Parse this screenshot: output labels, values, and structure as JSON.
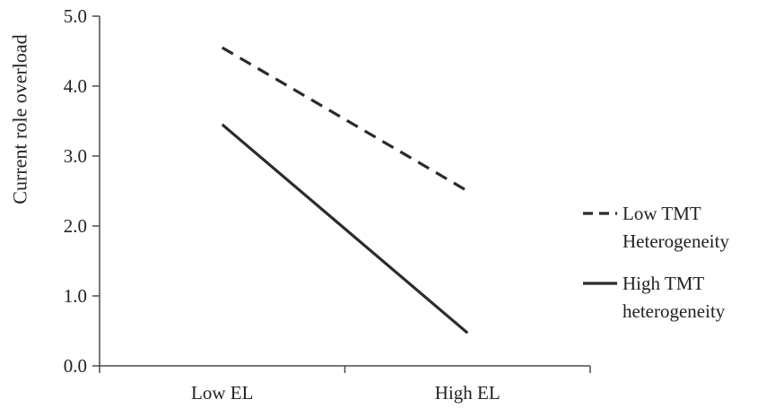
{
  "chart_data": {
    "type": "line",
    "title": "",
    "xlabel": "",
    "ylabel": "Current role overload",
    "categories": [
      "Low EL",
      "High EL"
    ],
    "y_ticks": [
      "0.0",
      "1.0",
      "2.0",
      "3.0",
      "4.0",
      "5.0"
    ],
    "ylim": [
      0,
      5
    ],
    "grid": false,
    "legend_position": "right",
    "series": [
      {
        "name": "Low TMT Heterogeneity",
        "name_lines": [
          "Low TMT",
          "Heterogeneity"
        ],
        "values": [
          4.55,
          2.5
        ],
        "style": "dashed",
        "color": "#2b2b2b"
      },
      {
        "name": "High TMT heterogeneity",
        "name_lines": [
          "High TMT",
          "heterogeneity"
        ],
        "values": [
          3.45,
          0.47
        ],
        "style": "solid",
        "color": "#2b2b2b"
      }
    ]
  }
}
